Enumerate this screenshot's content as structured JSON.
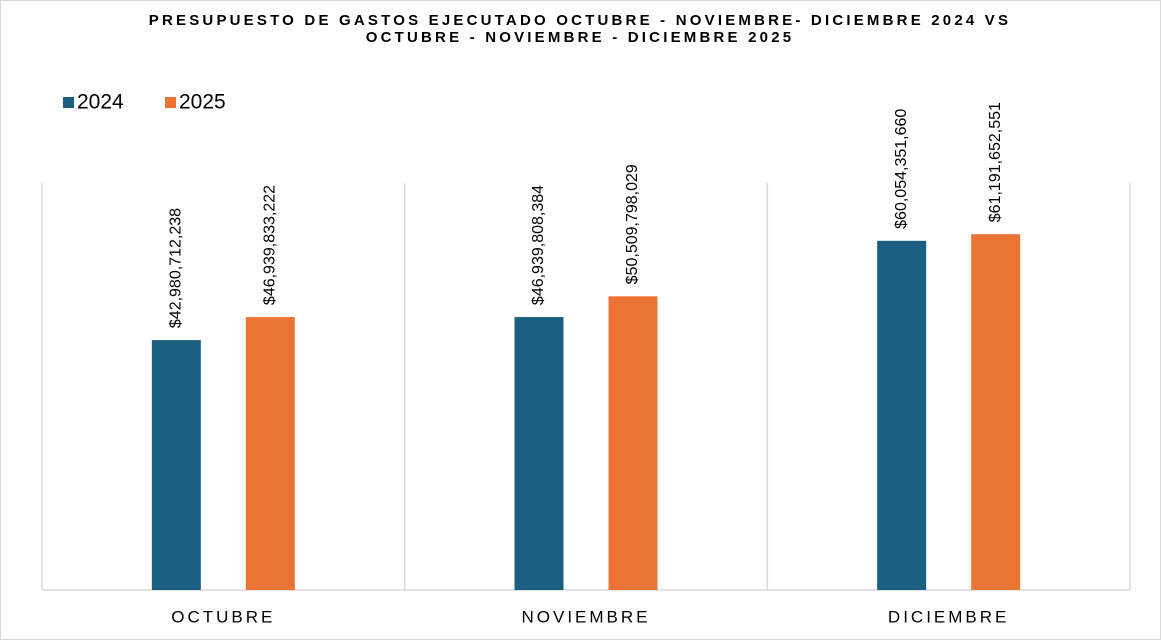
{
  "chart_data": {
    "type": "bar",
    "title": "PRESUPUESTO DE GASTOS EJECUTADO OCTUBRE - NOVIEMBRE- DICIEMBRE 2024 VS OCTUBRE - NOVIEMBRE - DICIEMBRE 2025",
    "categories": [
      "OCTUBRE",
      "NOVIEMBRE",
      "DICIEMBRE"
    ],
    "series": [
      {
        "name": "2024",
        "color": "#1a5e82",
        "values": [
          42980712238,
          46939808384,
          60054351660
        ],
        "value_labels": [
          "$42,980,712,238",
          "$46,939,808,384",
          "$60,054,351,660"
        ]
      },
      {
        "name": "2025",
        "color": "#eb7434",
        "values": [
          46939833222,
          50509798029,
          61191652551
        ],
        "value_labels": [
          "$46,939,833,222",
          "$50,509,798,029",
          "$61,191,652,551"
        ]
      }
    ],
    "ylim": [
      0,
      70000000000
    ],
    "legend": "top-left"
  }
}
